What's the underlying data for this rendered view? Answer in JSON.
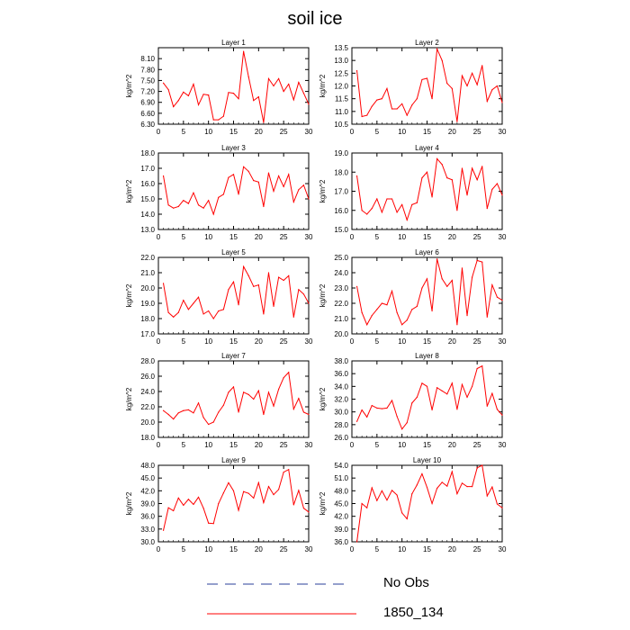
{
  "title": "soil ice",
  "legend": [
    {
      "label": "No Obs",
      "style": "dashed",
      "color": "#2a3f9a"
    },
    {
      "label": "1850_134",
      "style": "solid",
      "color": "#ff0000"
    }
  ],
  "chart_data": [
    {
      "type": "line",
      "title": "Layer 1",
      "ylabel": "kg/m^2",
      "xlim": [
        0,
        30
      ],
      "ylim": [
        6.3,
        8.4
      ],
      "xticks": [
        0,
        5,
        10,
        15,
        20,
        25,
        30
      ],
      "yticks": [
        "6.30",
        "6.60",
        "6.90",
        "7.20",
        "7.50",
        "7.80",
        "8.10"
      ],
      "series": [
        {
          "color": "#ff0000",
          "x": [
            1,
            2,
            3,
            4,
            5,
            6,
            7,
            8,
            9,
            10,
            11,
            12,
            13,
            14,
            15,
            16,
            17,
            18,
            19,
            20,
            21,
            22,
            23,
            24,
            25,
            26,
            27,
            28,
            29,
            30
          ],
          "values": [
            7.43,
            7.25,
            6.78,
            6.95,
            7.18,
            7.08,
            7.4,
            6.83,
            7.12,
            7.1,
            6.42,
            6.42,
            6.52,
            7.17,
            7.15,
            7.0,
            8.3,
            7.6,
            6.95,
            7.05,
            6.35,
            7.55,
            7.35,
            7.55,
            7.2,
            7.4,
            6.97,
            7.45,
            7.15,
            6.85
          ]
        }
      ]
    },
    {
      "type": "line",
      "title": "Layer 2",
      "ylabel": "kg/m^2",
      "xlim": [
        0,
        30
      ],
      "ylim": [
        10.5,
        13.5
      ],
      "xticks": [
        0,
        5,
        10,
        15,
        20,
        25,
        30
      ],
      "yticks": [
        "10.5",
        "11.0",
        "11.5",
        "12.0",
        "12.5",
        "13.0",
        "13.5"
      ],
      "series": [
        {
          "color": "#ff0000",
          "x": [
            1,
            2,
            3,
            4,
            5,
            6,
            7,
            8,
            9,
            10,
            11,
            12,
            13,
            14,
            15,
            16,
            17,
            18,
            19,
            20,
            21,
            22,
            23,
            24,
            25,
            26,
            27,
            28,
            29,
            30
          ],
          "values": [
            12.6,
            10.8,
            10.85,
            11.2,
            11.45,
            11.5,
            11.9,
            11.1,
            11.1,
            11.3,
            10.85,
            11.25,
            11.5,
            12.25,
            12.3,
            11.5,
            13.45,
            13.0,
            12.1,
            11.9,
            10.6,
            12.4,
            12.0,
            12.5,
            12.05,
            12.8,
            11.4,
            11.85,
            12.0,
            11.35
          ]
        }
      ]
    },
    {
      "type": "line",
      "title": "Layer 3",
      "ylabel": "kg/m^2",
      "xlim": [
        0,
        30
      ],
      "ylim": [
        13.0,
        18.0
      ],
      "xticks": [
        0,
        5,
        10,
        15,
        20,
        25,
        30
      ],
      "yticks": [
        "13.0",
        "14.0",
        "15.0",
        "16.0",
        "17.0",
        "18.0"
      ],
      "series": [
        {
          "color": "#ff0000",
          "x": [
            1,
            2,
            3,
            4,
            5,
            6,
            7,
            8,
            9,
            10,
            11,
            12,
            13,
            14,
            15,
            16,
            17,
            18,
            19,
            20,
            21,
            22,
            23,
            24,
            25,
            26,
            27,
            28,
            29,
            30
          ],
          "values": [
            16.5,
            14.6,
            14.4,
            14.5,
            14.9,
            14.7,
            15.4,
            14.6,
            14.4,
            14.9,
            14.0,
            15.1,
            15.3,
            16.4,
            16.6,
            15.3,
            17.1,
            16.8,
            16.2,
            16.1,
            14.5,
            16.7,
            15.5,
            16.5,
            15.8,
            16.6,
            14.8,
            15.6,
            15.9,
            15.0
          ]
        }
      ]
    },
    {
      "type": "line",
      "title": "Layer 4",
      "ylabel": "kg/m^2",
      "xlim": [
        0,
        30
      ],
      "ylim": [
        15.0,
        19.0
      ],
      "xticks": [
        0,
        5,
        10,
        15,
        20,
        25,
        30
      ],
      "yticks": [
        "15.0",
        "16.0",
        "17.0",
        "18.0",
        "19.0"
      ],
      "series": [
        {
          "color": "#ff0000",
          "x": [
            1,
            2,
            3,
            4,
            5,
            6,
            7,
            8,
            9,
            10,
            11,
            12,
            13,
            14,
            15,
            16,
            17,
            18,
            19,
            20,
            21,
            22,
            23,
            24,
            25,
            26,
            27,
            28,
            29,
            30
          ],
          "values": [
            17.8,
            16.0,
            15.8,
            16.1,
            16.6,
            15.9,
            16.6,
            16.6,
            15.9,
            16.3,
            15.5,
            16.3,
            16.4,
            17.7,
            18.0,
            16.7,
            18.7,
            18.4,
            17.7,
            17.6,
            16.0,
            18.2,
            16.8,
            18.2,
            17.6,
            18.3,
            16.1,
            17.1,
            17.4,
            16.8
          ]
        }
      ]
    },
    {
      "type": "line",
      "title": "Layer 5",
      "ylabel": "kg/m^2",
      "xlim": [
        0,
        30
      ],
      "ylim": [
        17.0,
        22.0
      ],
      "xticks": [
        0,
        5,
        10,
        15,
        20,
        25,
        30
      ],
      "yticks": [
        "17.0",
        "18.0",
        "19.0",
        "20.0",
        "21.0",
        "22.0"
      ],
      "series": [
        {
          "color": "#ff0000",
          "x": [
            1,
            2,
            3,
            4,
            5,
            6,
            7,
            8,
            9,
            10,
            11,
            12,
            13,
            14,
            15,
            16,
            17,
            18,
            19,
            20,
            21,
            22,
            23,
            24,
            25,
            26,
            27,
            28,
            29,
            30
          ],
          "values": [
            20.3,
            18.4,
            18.1,
            18.4,
            19.2,
            18.6,
            19.0,
            19.4,
            18.3,
            18.5,
            18.0,
            18.5,
            18.6,
            19.9,
            20.4,
            18.9,
            21.4,
            20.8,
            20.1,
            20.2,
            18.3,
            21.0,
            18.8,
            20.7,
            20.5,
            20.8,
            18.1,
            19.9,
            19.6,
            19.0
          ]
        }
      ]
    },
    {
      "type": "line",
      "title": "Layer 6",
      "ylabel": "kg/m^2",
      "xlim": [
        0,
        30
      ],
      "ylim": [
        20.0,
        25.0
      ],
      "xticks": [
        0,
        5,
        10,
        15,
        20,
        25,
        30
      ],
      "yticks": [
        "20.0",
        "21.0",
        "22.0",
        "23.0",
        "24.0",
        "25.0"
      ],
      "series": [
        {
          "color": "#ff0000",
          "x": [
            1,
            2,
            3,
            4,
            5,
            6,
            7,
            8,
            9,
            10,
            11,
            12,
            13,
            14,
            15,
            16,
            17,
            18,
            19,
            20,
            21,
            22,
            23,
            24,
            25,
            26,
            27,
            28,
            29,
            30
          ],
          "values": [
            23.1,
            21.4,
            20.6,
            21.2,
            21.6,
            22.0,
            21.9,
            22.8,
            21.4,
            20.6,
            20.9,
            21.6,
            21.8,
            23.0,
            23.6,
            21.5,
            24.9,
            23.6,
            23.1,
            23.5,
            20.6,
            24.3,
            21.2,
            23.7,
            24.8,
            24.7,
            21.1,
            23.2,
            22.4,
            22.2
          ]
        }
      ]
    },
    {
      "type": "line",
      "title": "Layer 7",
      "ylabel": "kg/m^2",
      "xlim": [
        0,
        30
      ],
      "ylim": [
        18.0,
        28.0
      ],
      "xticks": [
        0,
        5,
        10,
        15,
        20,
        25,
        30
      ],
      "yticks": [
        "18.0",
        "20.0",
        "22.0",
        "24.0",
        "26.0",
        "28.0"
      ],
      "series": [
        {
          "color": "#ff0000",
          "x": [
            1,
            2,
            3,
            4,
            5,
            6,
            7,
            8,
            9,
            10,
            11,
            12,
            13,
            14,
            15,
            16,
            17,
            18,
            19,
            20,
            21,
            22,
            23,
            24,
            25,
            26,
            27,
            28,
            29,
            30
          ],
          "values": [
            21.5,
            21.0,
            20.4,
            21.2,
            21.5,
            21.6,
            21.2,
            22.5,
            20.6,
            19.7,
            20.0,
            21.3,
            22.2,
            23.9,
            24.6,
            21.3,
            23.9,
            23.6,
            23.0,
            24.1,
            21.0,
            23.9,
            22.1,
            24.3,
            25.8,
            26.5,
            21.7,
            23.1,
            21.3,
            21.0
          ]
        }
      ]
    },
    {
      "type": "line",
      "title": "Layer 8",
      "ylabel": "kg/m^2",
      "xlim": [
        0,
        30
      ],
      "ylim": [
        26.0,
        38.0
      ],
      "xticks": [
        0,
        5,
        10,
        15,
        20,
        25,
        30
      ],
      "yticks": [
        "26.0",
        "28.0",
        "30.0",
        "32.0",
        "34.0",
        "36.0",
        "38.0"
      ],
      "series": [
        {
          "color": "#ff0000",
          "x": [
            1,
            2,
            3,
            4,
            5,
            6,
            7,
            8,
            9,
            10,
            11,
            12,
            13,
            14,
            15,
            16,
            17,
            18,
            19,
            20,
            21,
            22,
            23,
            24,
            25,
            26,
            27,
            28,
            29,
            30
          ],
          "values": [
            28.5,
            30.3,
            29.2,
            31.0,
            30.6,
            30.5,
            30.6,
            31.8,
            29.3,
            27.3,
            28.3,
            31.4,
            32.3,
            34.5,
            34.0,
            30.3,
            33.8,
            33.3,
            32.8,
            34.5,
            30.4,
            34.3,
            32.3,
            34.0,
            36.8,
            37.2,
            30.9,
            32.9,
            30.4,
            29.5
          ]
        }
      ]
    },
    {
      "type": "line",
      "title": "Layer 9",
      "ylabel": "kg/m^2",
      "xlim": [
        0,
        30
      ],
      "ylim": [
        30.0,
        48.0
      ],
      "xticks": [
        0,
        5,
        10,
        15,
        20,
        25,
        30
      ],
      "yticks": [
        "30.0",
        "33.0",
        "36.0",
        "39.0",
        "42.0",
        "45.0",
        "48.0"
      ],
      "series": [
        {
          "color": "#ff0000",
          "x": [
            1,
            2,
            3,
            4,
            5,
            6,
            7,
            8,
            9,
            10,
            11,
            12,
            13,
            14,
            15,
            16,
            17,
            18,
            19,
            20,
            21,
            22,
            23,
            24,
            25,
            26,
            27,
            28,
            29,
            30
          ],
          "values": [
            32.7,
            38.0,
            37.3,
            40.3,
            38.6,
            40.0,
            38.8,
            40.5,
            37.9,
            34.4,
            34.3,
            39.0,
            41.5,
            43.9,
            42.0,
            37.4,
            41.8,
            41.4,
            40.3,
            43.9,
            39.2,
            43.0,
            41.1,
            42.3,
            46.4,
            47.0,
            38.7,
            42.1,
            37.9,
            37.0
          ]
        }
      ]
    },
    {
      "type": "line",
      "title": "Layer 10",
      "ylabel": "kg/m^2",
      "xlim": [
        0,
        30
      ],
      "ylim": [
        36.0,
        54.0
      ],
      "xticks": [
        0,
        5,
        10,
        15,
        20,
        25,
        30
      ],
      "yticks": [
        "36.0",
        "39.0",
        "42.0",
        "45.0",
        "48.0",
        "51.0",
        "54.0"
      ],
      "series": [
        {
          "color": "#ff0000",
          "x": [
            1,
            2,
            3,
            4,
            5,
            6,
            7,
            8,
            9,
            10,
            11,
            12,
            13,
            14,
            15,
            16,
            17,
            18,
            19,
            20,
            21,
            22,
            23,
            24,
            25,
            26,
            27,
            28,
            29,
            30
          ],
          "values": [
            36.0,
            45.0,
            44.0,
            48.7,
            45.7,
            48.0,
            45.8,
            48.1,
            47.0,
            42.8,
            41.4,
            47.3,
            49.4,
            52.0,
            48.8,
            45.0,
            48.6,
            50.0,
            49.1,
            52.5,
            47.3,
            49.8,
            49.0,
            49.0,
            53.4,
            54.0,
            46.8,
            48.9,
            44.9,
            44.0
          ]
        }
      ]
    }
  ]
}
